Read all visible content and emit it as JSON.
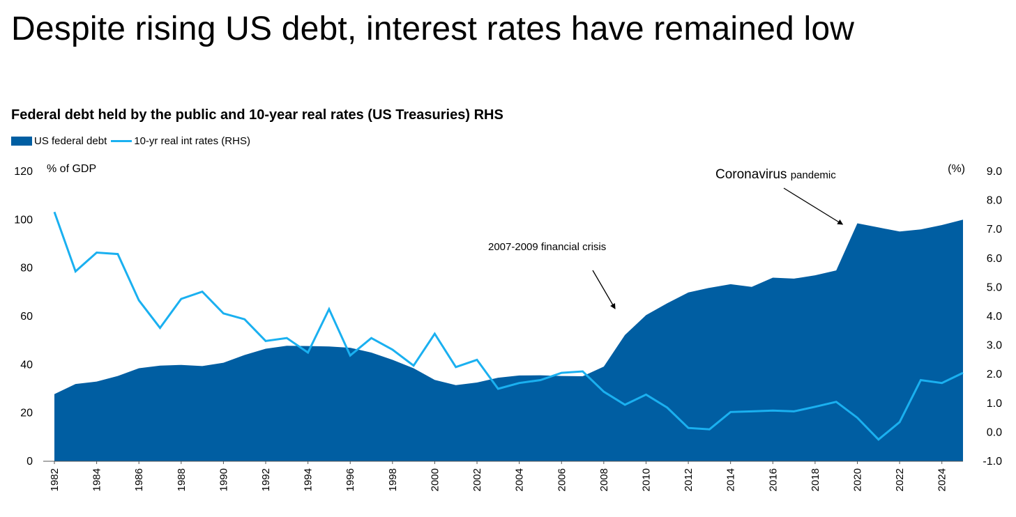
{
  "page": {
    "title": "Despite rising US debt, interest rates have remained low"
  },
  "chart_data": {
    "type": "area",
    "title": "Federal debt held by the public and 10-year real rates (US Treasuries) RHS",
    "legend": [
      {
        "name": "US federal debt",
        "kind": "area",
        "color": "#005ea2"
      },
      {
        "name": "10-yr real int rates (RHS)",
        "kind": "line",
        "color": "#1ab0f0"
      }
    ],
    "legend_placement": "top-left",
    "ylabel": "% of GDP",
    "y2label": "(%)",
    "ylim": [
      0,
      120
    ],
    "y2lim": [
      -1.0,
      9.0
    ],
    "yticks": [
      "0",
      "20",
      "40",
      "60",
      "80",
      "100",
      "120"
    ],
    "y2ticks": [
      "-1.0",
      "0.0",
      "1.0",
      "2.0",
      "3.0",
      "4.0",
      "5.0",
      "6.0",
      "7.0",
      "8.0",
      "9.0"
    ],
    "xticks": [
      "1982",
      "1984",
      "1986",
      "1988",
      "1990",
      "1992",
      "1994",
      "1996",
      "1998",
      "2000",
      "2002",
      "2004",
      "2006",
      "2008",
      "2010",
      "2012",
      "2014",
      "2016",
      "2018",
      "2020",
      "2022",
      "2024"
    ],
    "x": [
      1982,
      1983,
      1984,
      1985,
      1986,
      1987,
      1988,
      1989,
      1990,
      1991,
      1992,
      1993,
      1994,
      1995,
      1996,
      1997,
      1998,
      1999,
      2000,
      2001,
      2002,
      2003,
      2004,
      2005,
      2006,
      2007,
      2008,
      2009,
      2010,
      2011,
      2012,
      2013,
      2014,
      2015,
      2016,
      2017,
      2018,
      2019,
      2020,
      2021,
      2022,
      2023,
      2024,
      2025
    ],
    "series": [
      {
        "name": "US federal debt",
        "axis": "left",
        "values": [
          27.8,
          32.0,
          33.0,
          35.3,
          38.5,
          39.6,
          39.9,
          39.4,
          40.8,
          44.0,
          46.6,
          47.8,
          47.7,
          47.5,
          47.0,
          45.0,
          42.0,
          38.5,
          33.7,
          31.5,
          32.6,
          34.6,
          35.5,
          35.6,
          35.3,
          35.2,
          39.2,
          52.3,
          60.5,
          65.4,
          69.9,
          71.8,
          73.3,
          72.2,
          76.0,
          75.6,
          77.0,
          79.0,
          98.5,
          96.8,
          95.1,
          96.0,
          97.8,
          100.0
        ]
      },
      {
        "name": "10-yr real int rates (RHS)",
        "axis": "right",
        "values": [
          7.6,
          5.55,
          6.2,
          6.15,
          4.55,
          3.6,
          4.6,
          4.85,
          4.1,
          3.9,
          3.15,
          3.25,
          2.75,
          4.25,
          2.65,
          3.25,
          2.85,
          2.3,
          3.4,
          2.25,
          2.5,
          1.5,
          1.7,
          1.8,
          2.05,
          2.1,
          1.4,
          0.95,
          1.3,
          0.85,
          0.15,
          0.1,
          0.7,
          0.72,
          0.75,
          0.72,
          0.88,
          1.05,
          0.5,
          -0.25,
          0.35,
          1.8,
          1.7,
          2.05
        ]
      }
    ],
    "annotations": [
      {
        "text": "2007-2009 financial crisis",
        "x": 2008.6
      },
      {
        "text_main": "Coronavirus",
        "text_small": "pandemic",
        "x": 2019.3
      }
    ],
    "grid": false
  }
}
